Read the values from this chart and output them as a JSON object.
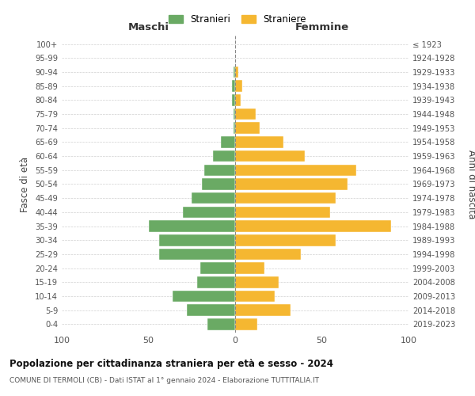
{
  "age_groups": [
    "0-4",
    "5-9",
    "10-14",
    "15-19",
    "20-24",
    "25-29",
    "30-34",
    "35-39",
    "40-44",
    "45-49",
    "50-54",
    "55-59",
    "60-64",
    "65-69",
    "70-74",
    "75-79",
    "80-84",
    "85-89",
    "90-94",
    "95-99",
    "100+"
  ],
  "birth_years": [
    "2019-2023",
    "2014-2018",
    "2009-2013",
    "2004-2008",
    "1999-2003",
    "1994-1998",
    "1989-1993",
    "1984-1988",
    "1979-1983",
    "1974-1978",
    "1969-1973",
    "1964-1968",
    "1959-1963",
    "1954-1958",
    "1949-1953",
    "1944-1948",
    "1939-1943",
    "1934-1938",
    "1929-1933",
    "1924-1928",
    "≤ 1923"
  ],
  "males": [
    16,
    28,
    36,
    22,
    20,
    44,
    44,
    50,
    30,
    25,
    19,
    18,
    13,
    8,
    1,
    1,
    2,
    2,
    1,
    0,
    0
  ],
  "females": [
    13,
    32,
    23,
    25,
    17,
    38,
    58,
    90,
    55,
    58,
    65,
    70,
    40,
    28,
    14,
    12,
    3,
    4,
    2,
    0,
    0
  ],
  "male_color": "#6aaa64",
  "female_color": "#f5b731",
  "background_color": "#ffffff",
  "grid_color": "#cccccc",
  "title": "Popolazione per cittadinanza straniera per età e sesso - 2024",
  "subtitle": "COMUNE DI TERMOLI (CB) - Dati ISTAT al 1° gennaio 2024 - Elaborazione TUTTITALIA.IT",
  "xlabel_left": "Maschi",
  "xlabel_right": "Femmine",
  "ylabel_left": "Fasce di età",
  "ylabel_right": "Anni di nascita",
  "legend_male": "Stranieri",
  "legend_female": "Straniere",
  "xlim": 100
}
